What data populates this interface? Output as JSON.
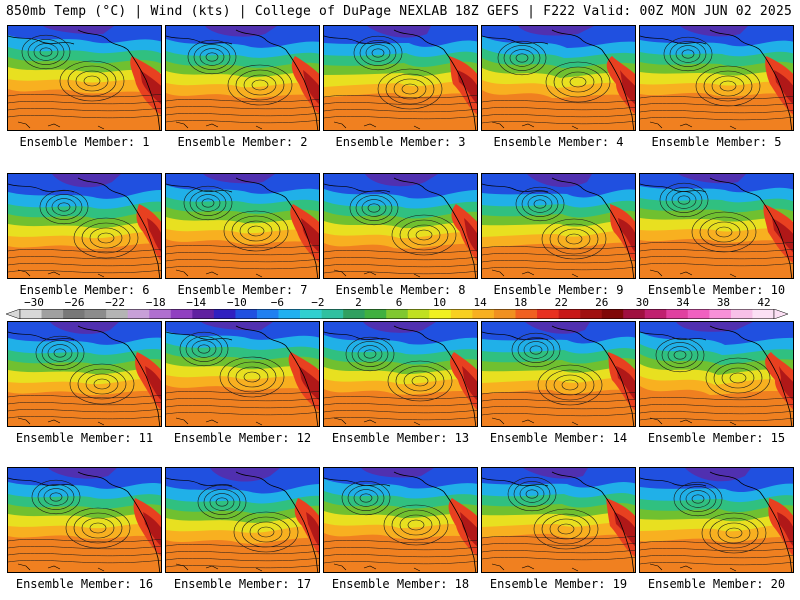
{
  "header": {
    "left": "850mb Temp (°C) | Wind (kts) | College of DuPage NEXLAB",
    "right": "18Z GEFS | F222 Valid: 00Z MON JUN 02 2025"
  },
  "panels": [
    {
      "label": "Ensemble Member: 1"
    },
    {
      "label": "Ensemble Member: 2"
    },
    {
      "label": "Ensemble Member: 3"
    },
    {
      "label": "Ensemble Member: 4"
    },
    {
      "label": "Ensemble Member: 5"
    },
    {
      "label": "Ensemble Member: 6"
    },
    {
      "label": "Ensemble Member: 7"
    },
    {
      "label": "Ensemble Member: 8"
    },
    {
      "label": "Ensemble Member: 9"
    },
    {
      "label": "Ensemble Member: 10"
    },
    {
      "label": "Ensemble Member: 11"
    },
    {
      "label": "Ensemble Member: 12"
    },
    {
      "label": "Ensemble Member: 13"
    },
    {
      "label": "Ensemble Member: 14"
    },
    {
      "label": "Ensemble Member: 15"
    },
    {
      "label": "Ensemble Member: 16"
    },
    {
      "label": "Ensemble Member: 17"
    },
    {
      "label": "Ensemble Member: 18"
    },
    {
      "label": "Ensemble Member: 19"
    },
    {
      "label": "Ensemble Member: 20"
    }
  ],
  "colorbar": {
    "labels": [
      "−30",
      "−26",
      "−22",
      "−18",
      "−14",
      "−10",
      "−6",
      "−2",
      "2",
      "6",
      "10",
      "14",
      "18",
      "22",
      "26",
      "30",
      "34",
      "38",
      "42"
    ],
    "colors": [
      "#d8d8d8",
      "#a0a0a0",
      "#787878",
      "#8c8c8c",
      "#b4b4b4",
      "#c8a0d8",
      "#b070d0",
      "#9040c0",
      "#6020a0",
      "#3020c0",
      "#2050e0",
      "#2080f0",
      "#20b0f0",
      "#30d0d0",
      "#30c0a0",
      "#30a060",
      "#40b040",
      "#80c830",
      "#c0e020",
      "#f0f020",
      "#f8d020",
      "#f8b020",
      "#f09020",
      "#f06020",
      "#e83020",
      "#c81818",
      "#a01010",
      "#800808",
      "#a01040",
      "#c02070",
      "#e040a0",
      "#f060c0",
      "#f890d8",
      "#f8c0e8",
      "#fce0f4"
    ]
  },
  "map_palette": {
    "deep_cold": "#5030b0",
    "cold": "#2050e0",
    "cool": "#20b0e8",
    "mild": "#30c080",
    "green": "#70c030",
    "yellow": "#e8e020",
    "warm": "#f8b020",
    "hot": "#f08020",
    "very_hot": "#e84020",
    "extreme": "#b01818",
    "contour": "#1a1a1a",
    "coast": "#000000"
  }
}
